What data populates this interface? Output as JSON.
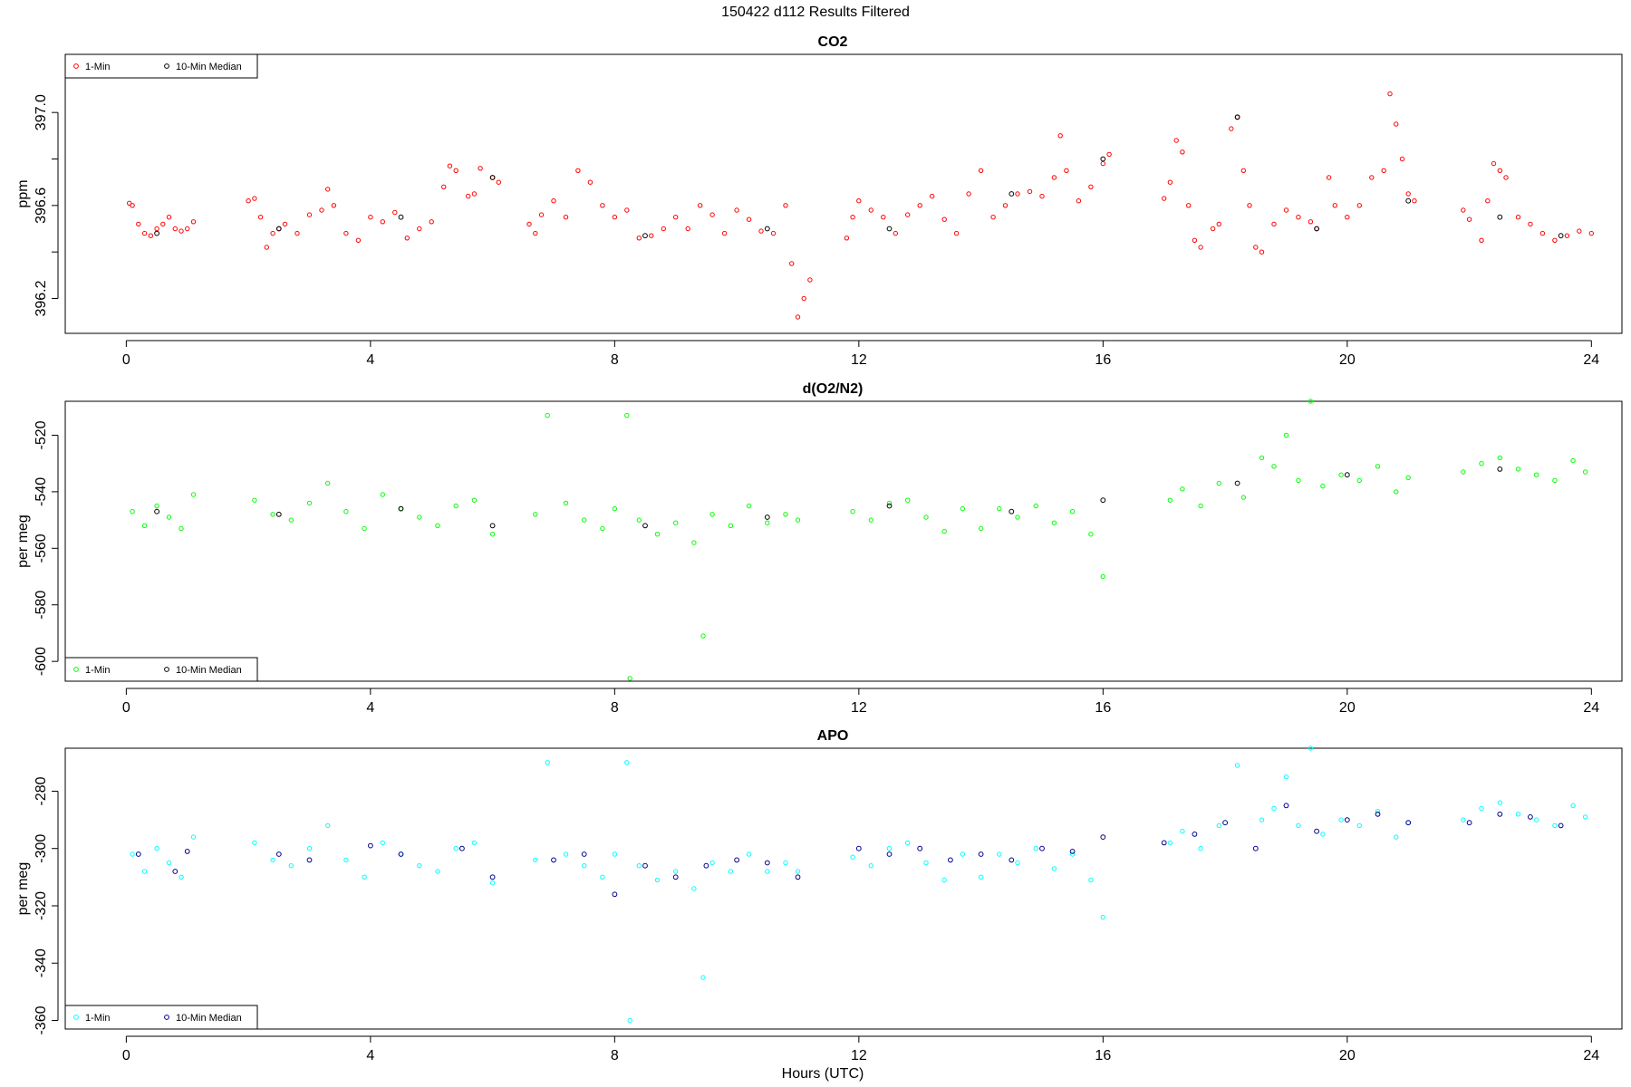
{
  "page_title": "150422   d112   Results Filtered",
  "xlabel": "Hours (UTC)",
  "colors": {
    "co2": "#ff0000",
    "o2n2": "#00ff00",
    "apo": "#00ffff",
    "median_default": "#000000",
    "median_apo": "#00008b"
  },
  "chart_data": [
    {
      "type": "scatter",
      "title": "CO2",
      "ylabel": "ppm",
      "xlim": [
        -1.0,
        24.5
      ],
      "ylim": [
        396.05,
        397.25
      ],
      "xticks": [
        0,
        4,
        8,
        12,
        16,
        20,
        24
      ],
      "yticks": [
        396.2,
        396.4,
        396.6,
        396.8,
        397.0
      ],
      "ytick_labels": [
        "396.2",
        "",
        "396.6",
        "",
        "397.0"
      ],
      "legend": {
        "placement": "top-left",
        "entries": [
          "1-Min",
          "10-Min Median"
        ]
      },
      "series": [
        {
          "name": "1-Min",
          "color": "#ff0000",
          "x": [
            0.05,
            0.1,
            0.2,
            0.3,
            0.4,
            0.5,
            0.6,
            0.7,
            0.8,
            0.9,
            1.0,
            1.1,
            2.0,
            2.1,
            2.2,
            2.3,
            2.4,
            2.5,
            2.6,
            2.8,
            3.0,
            3.2,
            3.3,
            3.4,
            3.6,
            3.8,
            4.0,
            4.2,
            4.4,
            4.6,
            4.8,
            5.0,
            5.2,
            5.3,
            5.4,
            5.6,
            5.7,
            5.8,
            6.0,
            6.1,
            6.6,
            6.7,
            6.8,
            7.0,
            7.2,
            7.4,
            7.6,
            7.8,
            8.0,
            8.2,
            8.4,
            8.6,
            8.8,
            9.0,
            9.2,
            9.4,
            9.6,
            9.8,
            10.0,
            10.2,
            10.4,
            10.6,
            10.8,
            10.9,
            11.0,
            11.1,
            11.2,
            11.8,
            11.9,
            12.0,
            12.2,
            12.4,
            12.6,
            12.8,
            13.0,
            13.2,
            13.4,
            13.6,
            13.8,
            14.0,
            14.2,
            14.4,
            14.6,
            14.8,
            15.0,
            15.2,
            15.3,
            15.4,
            15.6,
            15.8,
            16.0,
            16.1,
            17.0,
            17.1,
            17.2,
            17.3,
            17.4,
            17.5,
            17.6,
            17.8,
            17.9,
            18.1,
            18.2,
            18.3,
            18.4,
            18.5,
            18.6,
            18.8,
            19.0,
            19.2,
            19.4,
            19.5,
            19.7,
            19.8,
            20.0,
            20.2,
            20.4,
            20.6,
            20.7,
            20.8,
            20.9,
            21.0,
            21.1,
            21.9,
            22.0,
            22.2,
            22.3,
            22.4,
            22.5,
            22.6,
            22.8,
            23.0,
            23.2,
            23.4,
            23.6,
            23.8,
            24.0
          ],
          "y": [
            396.61,
            396.6,
            396.52,
            396.48,
            396.47,
            396.5,
            396.52,
            396.55,
            396.5,
            396.49,
            396.5,
            396.53,
            396.62,
            396.63,
            396.55,
            396.42,
            396.48,
            396.5,
            396.52,
            396.48,
            396.56,
            396.58,
            396.67,
            396.6,
            396.48,
            396.45,
            396.55,
            396.53,
            396.57,
            396.46,
            396.5,
            396.53,
            396.68,
            396.77,
            396.75,
            396.64,
            396.65,
            396.76,
            396.72,
            396.7,
            396.52,
            396.48,
            396.56,
            396.62,
            396.55,
            396.75,
            396.7,
            396.6,
            396.55,
            396.58,
            396.46,
            396.47,
            396.5,
            396.55,
            396.5,
            396.6,
            396.56,
            396.48,
            396.58,
            396.54,
            396.49,
            396.48,
            396.6,
            396.35,
            396.12,
            396.2,
            396.28,
            396.46,
            396.55,
            396.62,
            396.58,
            396.55,
            396.48,
            396.56,
            396.6,
            396.64,
            396.54,
            396.48,
            396.65,
            396.75,
            396.55,
            396.6,
            396.65,
            396.66,
            396.64,
            396.72,
            396.9,
            396.75,
            396.62,
            396.68,
            396.78,
            396.82,
            396.63,
            396.7,
            396.88,
            396.83,
            396.6,
            396.45,
            396.42,
            396.5,
            396.52,
            396.93,
            396.98,
            396.75,
            396.6,
            396.42,
            396.4,
            396.52,
            396.58,
            396.55,
            396.53,
            396.5,
            396.72,
            396.6,
            396.55,
            396.6,
            396.72,
            396.75,
            397.08,
            396.95,
            396.8,
            396.65,
            396.62,
            396.58,
            396.54,
            396.45,
            396.62,
            396.78,
            396.75,
            396.72,
            396.55,
            396.52,
            396.48,
            396.45,
            396.47,
            396.49,
            396.48
          ]
        },
        {
          "name": "10-Min Median",
          "color": "#000000",
          "x": [
            0.5,
            2.5,
            4.5,
            6.0,
            8.5,
            10.5,
            12.5,
            14.5,
            16.0,
            18.2,
            19.5,
            21.0,
            22.5,
            23.5
          ],
          "y": [
            396.48,
            396.5,
            396.55,
            396.72,
            396.47,
            396.5,
            396.5,
            396.65,
            396.8,
            396.98,
            396.5,
            396.62,
            396.55,
            396.47
          ]
        }
      ]
    },
    {
      "type": "scatter",
      "title": "d(O2/N2)",
      "ylabel": "per meg",
      "xlim": [
        -1.0,
        24.5
      ],
      "ylim": [
        -607,
        -508
      ],
      "xticks": [
        0,
        4,
        8,
        12,
        16,
        20,
        24
      ],
      "yticks": [
        -600,
        -580,
        -560,
        -540,
        -520
      ],
      "ytick_labels": [
        "-600",
        "-580",
        "-560",
        "-540",
        "-520"
      ],
      "legend": {
        "placement": "bottom-left",
        "entries": [
          "1-Min",
          "10-Min Median"
        ]
      },
      "series": [
        {
          "name": "1-Min",
          "color": "#00ff00",
          "x": [
            0.1,
            0.3,
            0.5,
            0.7,
            0.9,
            1.1,
            2.1,
            2.4,
            2.7,
            3.0,
            3.3,
            3.6,
            3.9,
            4.2,
            4.5,
            4.8,
            5.1,
            5.4,
            5.7,
            6.0,
            6.7,
            6.9,
            7.2,
            7.5,
            7.8,
            8.0,
            8.2,
            8.25,
            8.4,
            8.7,
            9.0,
            9.3,
            9.45,
            9.6,
            9.9,
            10.2,
            10.5,
            10.8,
            11.0,
            11.9,
            12.2,
            12.5,
            12.8,
            13.1,
            13.4,
            13.7,
            14.0,
            14.3,
            14.6,
            14.9,
            15.2,
            15.5,
            15.8,
            16.0,
            17.1,
            17.3,
            17.6,
            17.9,
            18.3,
            18.6,
            18.8,
            19.0,
            19.2,
            19.4,
            19.6,
            19.9,
            20.2,
            20.5,
            20.8,
            21.0,
            21.9,
            22.2,
            22.5,
            22.8,
            23.1,
            23.4,
            23.7,
            23.9
          ],
          "y": [
            -547,
            -552,
            -545,
            -549,
            -553,
            -541,
            -543,
            -548,
            -550,
            -544,
            -537,
            -547,
            -553,
            -541,
            -546,
            -549,
            -552,
            -545,
            -543,
            -555,
            -548,
            -513,
            -544,
            -550,
            -553,
            -546,
            -513,
            -606,
            -550,
            -555,
            -551,
            -558,
            -591,
            -548,
            -552,
            -545,
            -551,
            -548,
            -550,
            -547,
            -550,
            -544,
            -543,
            -549,
            -554,
            -546,
            -553,
            -546,
            -549,
            -545,
            -551,
            -547,
            -555,
            -570,
            -543,
            -539,
            -545,
            -537,
            -542,
            -528,
            -531,
            -520,
            -536,
            -508,
            -538,
            -534,
            -536,
            -531,
            -540,
            -535,
            -533,
            -530,
            -528,
            -532,
            -534,
            -536,
            -529,
            -533
          ]
        },
        {
          "name": "10-Min Median",
          "color": "#000000",
          "x": [
            0.5,
            2.5,
            4.5,
            6.0,
            8.5,
            10.5,
            12.5,
            14.5,
            16.0,
            18.2,
            20.0,
            22.5
          ],
          "y": [
            -547,
            -548,
            -546,
            -552,
            -552,
            -549,
            -545,
            -547,
            -543,
            -537,
            -534,
            -532
          ]
        }
      ]
    },
    {
      "type": "scatter",
      "title": "APO",
      "ylabel": "per meg",
      "xlabel": "Hours (UTC)",
      "xlim": [
        -1.0,
        24.5
      ],
      "ylim": [
        -363,
        -265
      ],
      "xticks": [
        0,
        4,
        8,
        12,
        16,
        20,
        24
      ],
      "yticks": [
        -360,
        -340,
        -320,
        -300,
        -280
      ],
      "ytick_labels": [
        "-360",
        "-340",
        "-320",
        "-300",
        "-280"
      ],
      "legend": {
        "placement": "bottom-left",
        "entries": [
          "1-Min",
          "10-Min Median"
        ]
      },
      "series": [
        {
          "name": "1-Min",
          "color": "#00ffff",
          "x": [
            0.1,
            0.3,
            0.5,
            0.7,
            0.9,
            1.1,
            2.1,
            2.4,
            2.7,
            3.0,
            3.3,
            3.6,
            3.9,
            4.2,
            4.5,
            4.8,
            5.1,
            5.4,
            5.7,
            6.0,
            6.7,
            6.9,
            7.2,
            7.5,
            7.8,
            8.0,
            8.2,
            8.25,
            8.4,
            8.7,
            9.0,
            9.3,
            9.45,
            9.6,
            9.9,
            10.2,
            10.5,
            10.8,
            11.0,
            11.9,
            12.2,
            12.5,
            12.8,
            13.1,
            13.4,
            13.7,
            14.0,
            14.3,
            14.6,
            14.9,
            15.2,
            15.5,
            15.8,
            16.0,
            17.1,
            17.3,
            17.6,
            17.9,
            18.2,
            18.6,
            18.8,
            19.0,
            19.2,
            19.4,
            19.6,
            19.9,
            20.2,
            20.5,
            20.8,
            21.0,
            21.9,
            22.2,
            22.5,
            22.8,
            23.1,
            23.4,
            23.7,
            23.9
          ],
          "y": [
            -302,
            -308,
            -300,
            -305,
            -310,
            -296,
            -298,
            -304,
            -306,
            -300,
            -292,
            -304,
            -310,
            -298,
            -302,
            -306,
            -308,
            -300,
            -298,
            -312,
            -304,
            -270,
            -302,
            -306,
            -310,
            -302,
            -270,
            -360,
            -306,
            -311,
            -308,
            -314,
            -345,
            -305,
            -308,
            -302,
            -308,
            -305,
            -308,
            -303,
            -306,
            -300,
            -298,
            -305,
            -311,
            -302,
            -310,
            -302,
            -305,
            -300,
            -307,
            -302,
            -311,
            -324,
            -298,
            -294,
            -300,
            -292,
            -271,
            -290,
            -286,
            -275,
            -292,
            -265,
            -295,
            -290,
            -292,
            -287,
            -296,
            -291,
            -290,
            -286,
            -284,
            -288,
            -290,
            -292,
            -285,
            -289
          ]
        },
        {
          "name": "10-Min Median",
          "color": "#00008b",
          "x": [
            0.2,
            0.8,
            1.0,
            2.5,
            3.0,
            4.0,
            4.5,
            5.5,
            6.0,
            7.0,
            7.5,
            8.0,
            8.5,
            9.0,
            9.5,
            10.0,
            10.5,
            11.0,
            12.0,
            12.5,
            13.0,
            13.5,
            14.0,
            14.5,
            15.0,
            15.5,
            16.0,
            17.0,
            17.5,
            18.0,
            18.5,
            19.0,
            19.5,
            20.0,
            20.5,
            21.0,
            22.0,
            22.5,
            23.0,
            23.5
          ],
          "y": [
            -302,
            -308,
            -301,
            -302,
            -304,
            -299,
            -302,
            -300,
            -310,
            -304,
            -302,
            -316,
            -306,
            -310,
            -306,
            -304,
            -305,
            -310,
            -300,
            -302,
            -300,
            -304,
            -302,
            -304,
            -300,
            -301,
            -296,
            -298,
            -295,
            -291,
            -300,
            -285,
            -294,
            -290,
            -288,
            -291,
            -291,
            -288,
            -289,
            -292
          ]
        }
      ]
    }
  ]
}
